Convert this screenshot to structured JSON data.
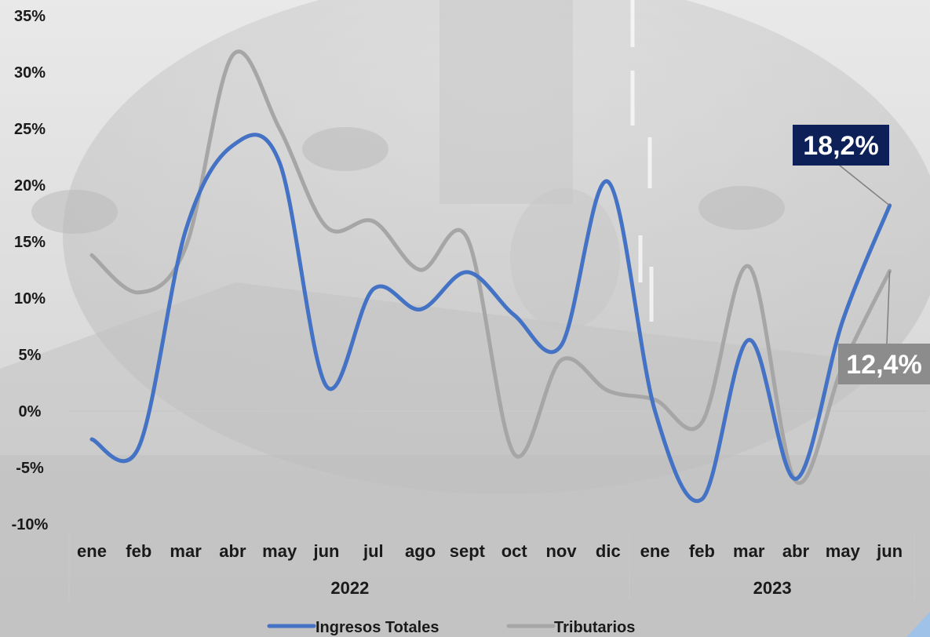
{
  "chart_data": {
    "type": "line",
    "title": "",
    "xlabel": "",
    "ylabel": "",
    "ylim": [
      -10,
      35
    ],
    "y_ticks": [
      -10,
      -5,
      0,
      5,
      10,
      15,
      20,
      25,
      30,
      35
    ],
    "y_tick_labels": [
      "-10%",
      "-5%",
      "0%",
      "5%",
      "10%",
      "15%",
      "20%",
      "25%",
      "30%",
      "35%"
    ],
    "categories": [
      "ene",
      "feb",
      "mar",
      "abr",
      "may",
      "jun",
      "jul",
      "ago",
      "sept",
      "oct",
      "nov",
      "dic",
      "ene",
      "feb",
      "mar",
      "abr",
      "may",
      "jun"
    ],
    "year_groups": [
      {
        "label": "2022",
        "start": 0,
        "end": 11
      },
      {
        "label": "2023",
        "start": 12,
        "end": 17
      }
    ],
    "grid": false,
    "legend_position": "bottom",
    "series": [
      {
        "name": "Ingresos Totales",
        "color": "#4472c4",
        "values": [
          -2.5,
          -3.2,
          16.0,
          23.5,
          22.0,
          2.2,
          10.8,
          9.0,
          12.3,
          8.5,
          5.8,
          20.3,
          0.0,
          -7.8,
          6.3,
          -6.0,
          8.0,
          18.2
        ]
      },
      {
        "name": "Tributarios",
        "color": "#a6a6a6",
        "values": [
          13.8,
          10.5,
          14.5,
          31.5,
          25.0,
          16.3,
          16.8,
          12.5,
          15.3,
          -3.8,
          4.5,
          1.8,
          1.0,
          -1.0,
          12.8,
          -6.2,
          4.0,
          12.4
        ]
      }
    ],
    "callouts": [
      {
        "text": "18,2%",
        "series": 0,
        "index": 17,
        "bg": "#0d2158",
        "fg": "#ffffff"
      },
      {
        "text": "12,4%",
        "series": 1,
        "index": 17,
        "bg": "#8c8c8c",
        "fg": "#ffffff"
      }
    ]
  },
  "colors": {
    "axis": "#c8c8c8",
    "text": "#1a1a1a"
  }
}
